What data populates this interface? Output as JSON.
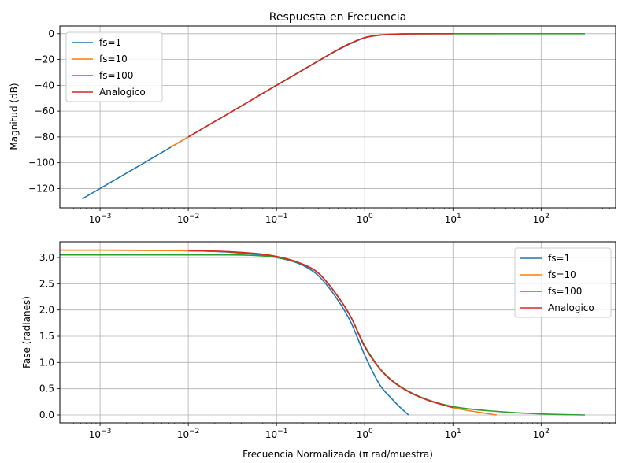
{
  "chart_data": [
    {
      "type": "line",
      "title": "Respuesta en Frecuencia",
      "xlabel": "",
      "ylabel": "Magnitud (dB)",
      "xscale": "log",
      "xlim": [
        0.00035,
        700
      ],
      "ylim": [
        -135,
        6
      ],
      "x_ticks": [
        "10^-3",
        "10^-2",
        "10^-1",
        "10^0",
        "10^1",
        "10^2"
      ],
      "y_ticks": [
        0,
        -20,
        -40,
        -60,
        -80,
        -100,
        -120
      ],
      "grid": true,
      "legend": "top-left",
      "series": [
        {
          "name": "fs=1",
          "color": "#1f77b4",
          "x": [
            0.000628,
            0.001,
            0.003,
            0.01,
            0.03,
            0.1,
            0.3,
            0.5,
            0.7,
            1.0,
            1.5,
            2.0,
            3.14
          ],
          "y": [
            -128.0,
            -120.0,
            -101.0,
            -80.0,
            -61.0,
            -40.0,
            -21.0,
            -12.5,
            -7.5,
            -3.2,
            -1.0,
            -0.4,
            0.0
          ]
        },
        {
          "name": "fs=10",
          "color": "#ff7f0e",
          "x": [
            0.00628,
            0.01,
            0.03,
            0.1,
            0.3,
            0.5,
            0.7,
            1.0,
            1.5,
            2.0,
            3.0,
            10.0,
            31.4
          ],
          "y": [
            -88.0,
            -80.0,
            -61.0,
            -40.0,
            -21.0,
            -12.2,
            -7.2,
            -3.0,
            -1.0,
            -0.4,
            -0.1,
            0.0,
            0.0
          ]
        },
        {
          "name": "fs=100",
          "color": "#2ca02c",
          "x": [
            0.0628,
            0.1,
            0.3,
            0.5,
            0.7,
            1.0,
            1.5,
            2.0,
            3.0,
            10.0,
            100.0,
            314.0
          ],
          "y": [
            -48.0,
            -40.0,
            -21.0,
            -12.2,
            -7.2,
            -3.0,
            -1.0,
            -0.4,
            -0.1,
            0.0,
            0.0,
            0.0
          ]
        },
        {
          "name": "Analogico",
          "color": "#d62728",
          "x": [
            0.01,
            0.03,
            0.1,
            0.3,
            0.5,
            0.7,
            1.0,
            1.5,
            2.0,
            3.0,
            5.0,
            10.0
          ],
          "y": [
            -80.0,
            -61.0,
            -40.0,
            -21.0,
            -12.2,
            -7.2,
            -3.0,
            -1.0,
            -0.4,
            -0.1,
            0.0,
            0.0
          ]
        }
      ]
    },
    {
      "type": "line",
      "title": "",
      "xlabel": "Frecuencia Normalizada (π rad/muestra)",
      "ylabel": "Fase (radianes)",
      "xscale": "log",
      "xlim": [
        0.00035,
        700
      ],
      "ylim": [
        -0.15,
        3.3
      ],
      "x_ticks": [
        "10^-3",
        "10^-2",
        "10^-1",
        "10^0",
        "10^1",
        "10^2"
      ],
      "y_ticks": [
        0.0,
        0.5,
        1.0,
        1.5,
        2.0,
        2.5,
        3.0
      ],
      "grid": true,
      "legend": "top-right",
      "series": [
        {
          "name": "fs=1",
          "color": "#1f77b4",
          "x": [
            0.00035,
            0.001,
            0.01,
            0.03,
            0.1,
            0.2,
            0.3,
            0.5,
            0.7,
            1.0,
            1.5,
            2.0,
            2.5,
            3.14
          ],
          "y": [
            3.14,
            3.14,
            3.13,
            3.1,
            3.0,
            2.85,
            2.65,
            2.18,
            1.76,
            1.14,
            0.56,
            0.32,
            0.15,
            0.0
          ]
        },
        {
          "name": "fs=10",
          "color": "#ff7f0e",
          "x": [
            0.00035,
            0.001,
            0.01,
            0.03,
            0.1,
            0.2,
            0.3,
            0.5,
            0.7,
            1.0,
            1.5,
            2.0,
            3.0,
            5.0,
            10.0,
            20.0,
            31.4
          ],
          "y": [
            3.14,
            3.14,
            3.13,
            3.11,
            3.02,
            2.87,
            2.7,
            2.25,
            1.86,
            1.3,
            0.87,
            0.66,
            0.46,
            0.29,
            0.14,
            0.05,
            0.0
          ]
        },
        {
          "name": "fs=100",
          "color": "#2ca02c",
          "x": [
            0.00035,
            0.001,
            0.01,
            0.03,
            0.1,
            0.2,
            0.3,
            0.5,
            0.7,
            1.0,
            1.5,
            2.0,
            3.0,
            5.0,
            10.0,
            30.0,
            100.0,
            314.0
          ],
          "y": [
            3.05,
            3.05,
            3.05,
            3.05,
            3.0,
            2.87,
            2.7,
            2.25,
            1.86,
            1.32,
            0.88,
            0.67,
            0.47,
            0.3,
            0.16,
            0.07,
            0.02,
            0.0
          ]
        },
        {
          "name": "Analogico",
          "color": "#d62728",
          "x": [
            0.01,
            0.03,
            0.1,
            0.2,
            0.3,
            0.5,
            0.7,
            1.0,
            1.5,
            2.0,
            3.0,
            5.0,
            10.0
          ],
          "y": [
            3.13,
            3.11,
            3.02,
            2.87,
            2.7,
            2.25,
            1.86,
            1.3,
            0.87,
            0.66,
            0.46,
            0.29,
            0.14
          ]
        }
      ]
    }
  ]
}
